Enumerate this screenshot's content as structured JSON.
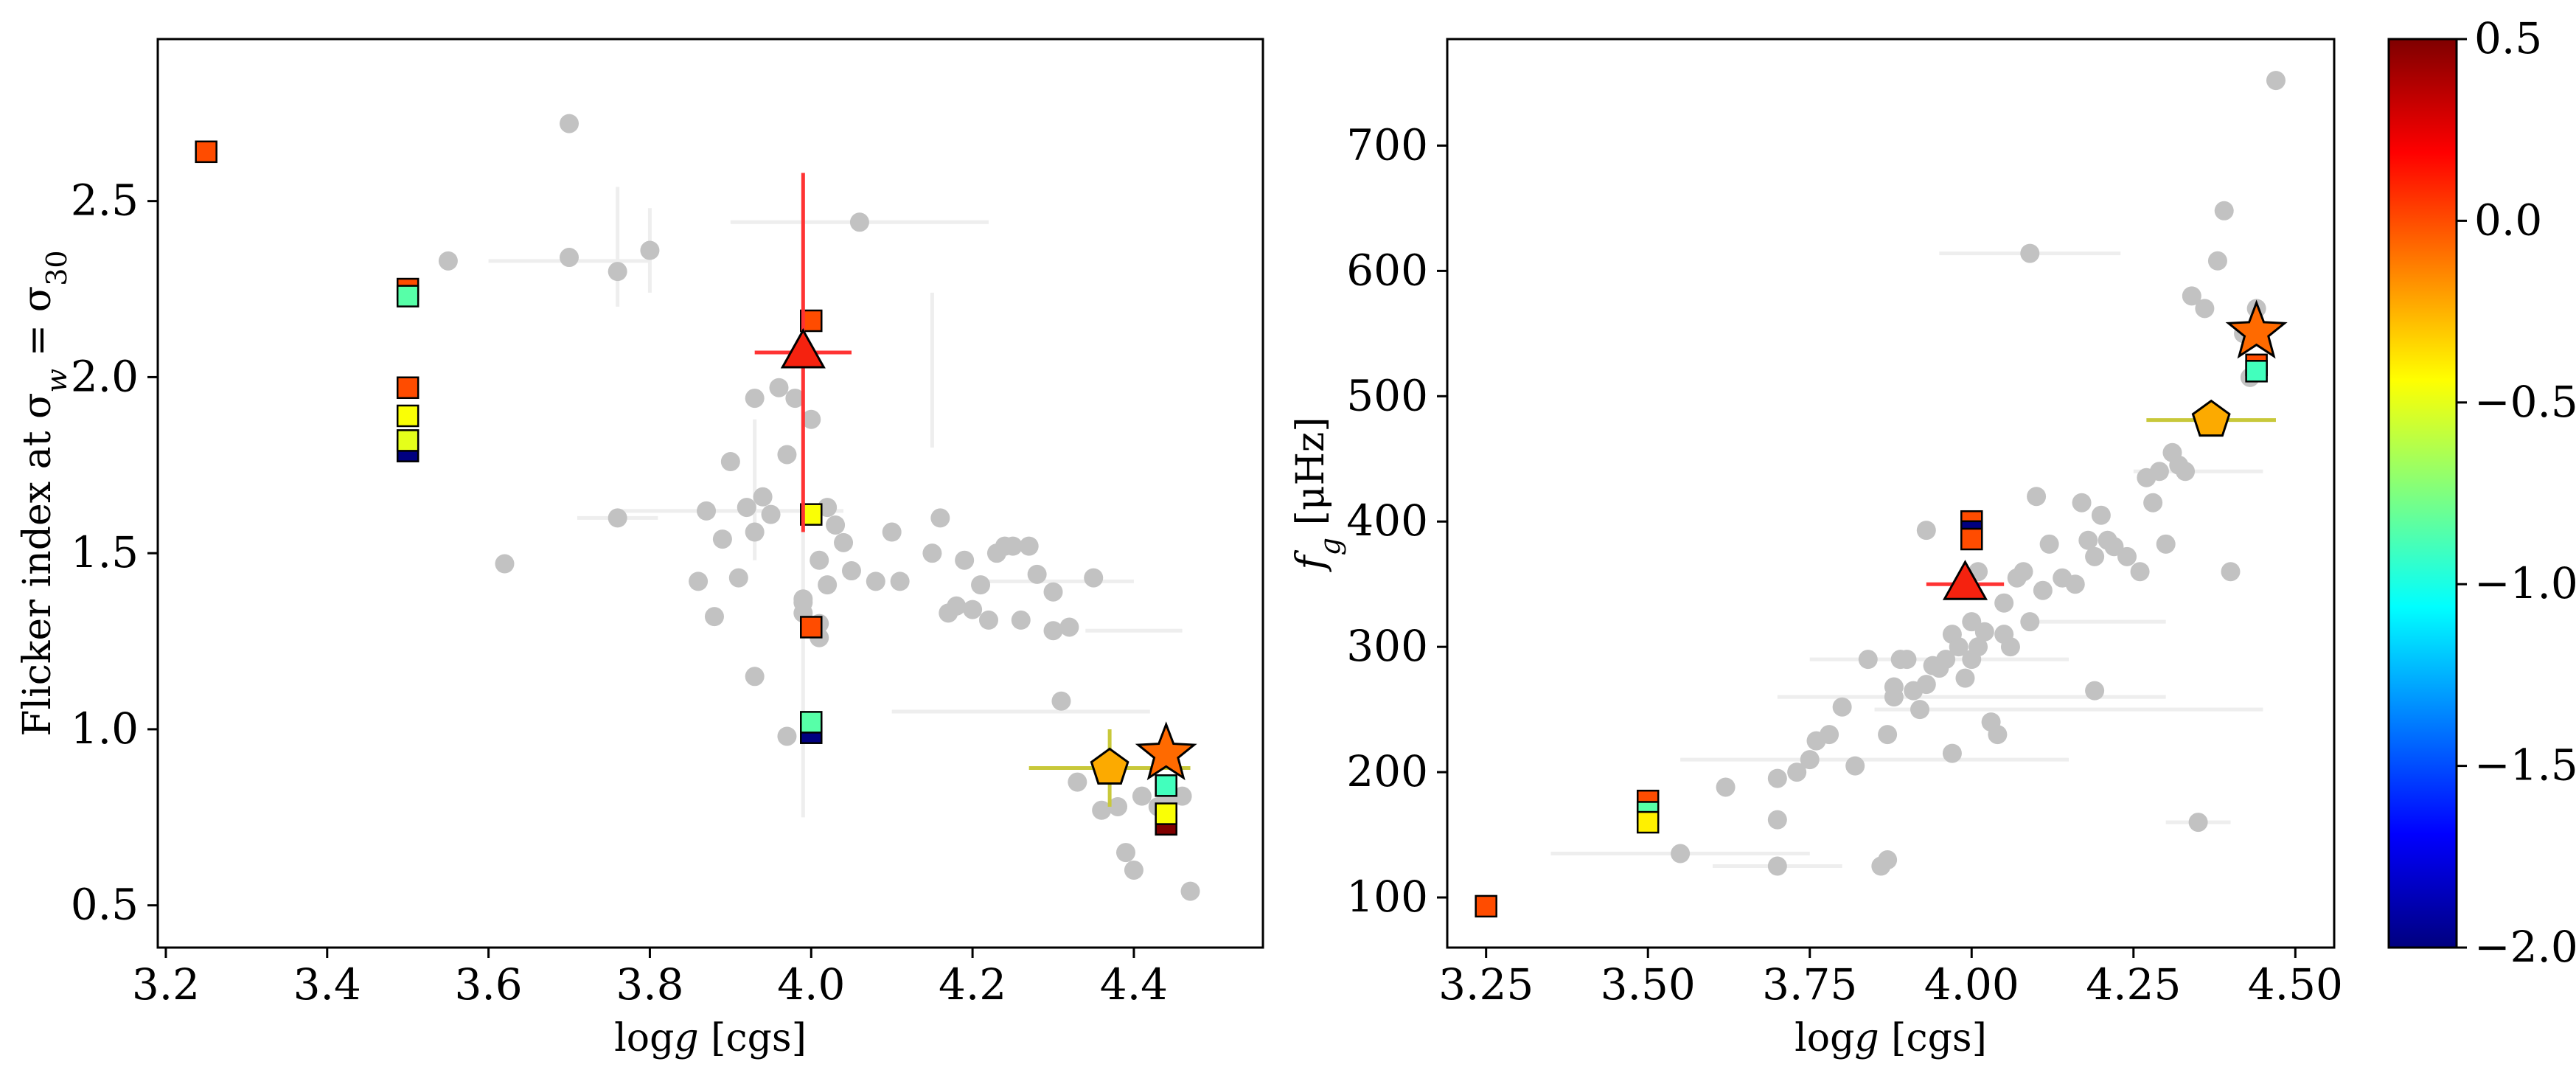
{
  "chart_data": [
    {
      "type": "scatter",
      "panel": "left",
      "xlabel_parts": [
        "log",
        "g",
        " [cgs]"
      ],
      "ylabel_parts": [
        "Flicker index at σ",
        "w",
        " = σ",
        "30"
      ],
      "xlim": [
        3.19,
        4.56
      ],
      "ylim": [
        0.38,
        2.96
      ],
      "xticks": [
        3.2,
        3.4,
        3.6,
        3.8,
        4.0,
        4.2,
        4.4
      ],
      "yticks": [
        0.5,
        1.0,
        1.5,
        2.0,
        2.5
      ],
      "xtick_labels": [
        "3.2",
        "3.4",
        "3.6",
        "3.8",
        "4.0",
        "4.2",
        "4.4"
      ],
      "ytick_labels": [
        "0.5",
        "1.0",
        "1.5",
        "2.0",
        "2.5"
      ],
      "grey_errorbars": [
        {
          "x": 3.7,
          "y": 2.33,
          "xerr": 0.1
        },
        {
          "x": 3.76,
          "y": 2.37,
          "yerr": 0.17
        },
        {
          "x": 3.8,
          "y": 2.36,
          "yerr": 0.12
        },
        {
          "x": 3.9,
          "y": 1.62,
          "xerr": 0.14
        },
        {
          "x": 4.06,
          "y": 2.44,
          "xerr": 0.16
        },
        {
          "x": 4.15,
          "y": 2.02,
          "yerr": 0.22
        },
        {
          "x": 3.99,
          "y": 1.2,
          "yerr": 0.45
        },
        {
          "x": 3.76,
          "y": 1.6,
          "xerr": 0.05
        },
        {
          "x": 3.93,
          "y": 1.68,
          "yerr": 0.2
        },
        {
          "x": 4.3,
          "y": 1.42,
          "xerr": 0.1
        },
        {
          "x": 4.26,
          "y": 1.05,
          "xerr": 0.16
        },
        {
          "x": 4.4,
          "y": 1.28,
          "xerr": 0.06
        }
      ],
      "grey_points": {
        "x": [
          3.55,
          3.7,
          3.7,
          3.76,
          3.8,
          3.62,
          3.76,
          3.86,
          3.87,
          3.88,
          3.89,
          3.9,
          3.91,
          3.92,
          3.93,
          3.93,
          3.94,
          3.95,
          3.96,
          3.97,
          3.98,
          3.99,
          3.99,
          4.0,
          4.0,
          4.01,
          4.01,
          4.02,
          4.02,
          4.03,
          4.04,
          4.05,
          4.06,
          4.08,
          4.1,
          4.11,
          4.15,
          4.16,
          4.17,
          4.18,
          4.19,
          4.2,
          4.21,
          4.22,
          4.23,
          4.24,
          4.25,
          4.26,
          4.27,
          4.28,
          4.3,
          4.31,
          4.32,
          4.33,
          4.35,
          4.36,
          4.38,
          4.41,
          4.43,
          4.44,
          4.46,
          4.47,
          3.93,
          3.97,
          4.01,
          3.99,
          4.39,
          4.4,
          4.3
        ],
        "y": [
          2.33,
          2.72,
          2.34,
          2.3,
          2.36,
          1.47,
          1.6,
          1.42,
          1.62,
          1.32,
          1.54,
          1.76,
          1.43,
          1.63,
          1.94,
          1.56,
          1.66,
          1.61,
          1.97,
          1.78,
          1.94,
          1.37,
          1.33,
          1.61,
          1.88,
          1.26,
          1.48,
          1.63,
          1.41,
          1.58,
          1.53,
          1.45,
          2.44,
          1.42,
          1.56,
          1.42,
          1.5,
          1.6,
          1.33,
          1.35,
          1.48,
          1.34,
          1.41,
          1.31,
          1.5,
          1.52,
          1.52,
          1.31,
          1.52,
          1.44,
          1.39,
          1.08,
          1.29,
          0.85,
          1.43,
          0.77,
          0.78,
          0.81,
          0.78,
          0.8,
          0.81,
          0.54,
          1.15,
          0.98,
          1.3,
          1.36,
          0.65,
          0.6,
          1.28
        ]
      },
      "squares": [
        {
          "x": 3.25,
          "y": 2.64,
          "value": 0.0
        },
        {
          "x": 3.5,
          "y": 2.25,
          "value": 0.0
        },
        {
          "x": 3.5,
          "y": 2.23,
          "value": -0.85
        },
        {
          "x": 3.5,
          "y": 1.97,
          "value": 0.0
        },
        {
          "x": 3.5,
          "y": 1.89,
          "value": -0.45
        },
        {
          "x": 3.5,
          "y": 1.79,
          "value": -2.0
        },
        {
          "x": 3.5,
          "y": 1.82,
          "value": -0.5
        },
        {
          "x": 4.0,
          "y": 2.16,
          "value": 0.0
        },
        {
          "x": 4.0,
          "y": 1.61,
          "value": -0.45
        },
        {
          "x": 4.0,
          "y": 1.29,
          "value": 0.0
        },
        {
          "x": 4.0,
          "y": 0.99,
          "value": -2.0
        },
        {
          "x": 4.0,
          "y": 1.02,
          "value": -0.85
        },
        {
          "x": 4.44,
          "y": 0.73,
          "value": 0.5
        },
        {
          "x": 4.44,
          "y": 0.76,
          "value": -0.45
        },
        {
          "x": 4.44,
          "y": 0.84,
          "value": -0.9
        }
      ],
      "triangle": {
        "x": 3.99,
        "y": 2.07,
        "xerr": 0.06,
        "yerr_low": 0.51,
        "yerr_high": 0.51,
        "errcolor": "#ff3333",
        "color": "#f5220f"
      },
      "pentagon": {
        "x": 4.37,
        "y": 0.89,
        "xerr": 0.1,
        "yerr": 0.11,
        "errcolor": "#c8c83a",
        "color": "#fcaa00"
      },
      "star": {
        "x": 4.44,
        "y": 0.93,
        "color": "#ff6a00"
      }
    },
    {
      "type": "scatter",
      "panel": "right",
      "xlabel_parts": [
        "log",
        "g",
        " [cgs]"
      ],
      "ylabel_parts": [
        "f",
        "g",
        " [μHz]"
      ],
      "xlim": [
        3.19,
        4.56
      ],
      "ylim": [
        60,
        785
      ],
      "xticks": [
        3.25,
        3.5,
        3.75,
        4.0,
        4.25,
        4.5
      ],
      "yticks": [
        100,
        200,
        300,
        400,
        500,
        600,
        700
      ],
      "xtick_labels": [
        "3.25",
        "3.50",
        "3.75",
        "4.00",
        "4.25",
        "4.50"
      ],
      "ytick_labels": [
        "100",
        "200",
        "300",
        "400",
        "500",
        "600",
        "700"
      ],
      "grey_errorbars": [
        {
          "x": 4.09,
          "y": 614,
          "xerr": 0.14
        },
        {
          "x": 3.55,
          "y": 135,
          "xerr": 0.2
        },
        {
          "x": 3.7,
          "y": 125,
          "xerr": 0.1
        },
        {
          "x": 3.95,
          "y": 290,
          "xerr": 0.2
        },
        {
          "x": 4.0,
          "y": 260,
          "xerr": 0.3
        },
        {
          "x": 4.15,
          "y": 250,
          "xerr": 0.3
        },
        {
          "x": 3.85,
          "y": 210,
          "xerr": 0.3
        },
        {
          "x": 4.35,
          "y": 160,
          "xerr": 0.05
        },
        {
          "x": 4.2,
          "y": 320,
          "xerr": 0.1
        },
        {
          "x": 4.35,
          "y": 440,
          "xerr": 0.1
        }
      ],
      "grey_points": {
        "x": [
          3.55,
          3.62,
          3.7,
          3.7,
          3.7,
          3.73,
          3.75,
          3.76,
          3.78,
          3.8,
          3.82,
          3.84,
          3.86,
          3.87,
          3.87,
          3.88,
          3.88,
          3.89,
          3.9,
          3.91,
          3.92,
          3.93,
          3.94,
          3.95,
          3.96,
          3.97,
          3.97,
          3.98,
          3.99,
          4.0,
          4.0,
          4.01,
          4.02,
          4.03,
          4.04,
          4.05,
          4.06,
          4.07,
          4.08,
          4.09,
          4.1,
          4.11,
          4.12,
          4.14,
          4.16,
          4.17,
          4.18,
          4.19,
          4.2,
          4.21,
          4.22,
          4.24,
          4.26,
          4.28,
          4.29,
          4.3,
          4.31,
          4.32,
          4.33,
          4.34,
          4.36,
          4.38,
          4.39,
          4.4,
          4.42,
          4.43,
          4.44,
          4.47,
          4.35,
          4.19,
          4.09,
          4.05,
          4.01,
          3.93,
          4.27
        ],
        "y": [
          135,
          188,
          195,
          162,
          125,
          200,
          210,
          225,
          230,
          252,
          205,
          290,
          125,
          130,
          230,
          260,
          268,
          290,
          290,
          265,
          250,
          270,
          285,
          283,
          290,
          215,
          310,
          300,
          275,
          290,
          320,
          300,
          312,
          240,
          230,
          335,
          300,
          355,
          360,
          320,
          420,
          345,
          382,
          355,
          350,
          415,
          385,
          372,
          405,
          385,
          380,
          372,
          360,
          415,
          440,
          382,
          455,
          445,
          440,
          580,
          570,
          608,
          648,
          360,
          550,
          515,
          570,
          752,
          160,
          265,
          614,
          310,
          360,
          393,
          435
        ]
      },
      "squares": [
        {
          "x": 3.25,
          "y": 93,
          "value": 0.0
        },
        {
          "x": 3.5,
          "y": 177,
          "value": 0.0
        },
        {
          "x": 3.5,
          "y": 168,
          "value": -0.85
        },
        {
          "x": 3.5,
          "y": 160,
          "value": -0.4
        },
        {
          "x": 4.0,
          "y": 400,
          "value": 0.0
        },
        {
          "x": 4.0,
          "y": 392,
          "value": -2.0
        },
        {
          "x": 4.0,
          "y": 386,
          "value": 0.0
        },
        {
          "x": 4.44,
          "y": 525,
          "value": 0.0
        },
        {
          "x": 4.44,
          "y": 520,
          "value": -0.9
        }
      ],
      "triangle": {
        "x": 3.99,
        "y": 350,
        "xerr": 0.06,
        "errcolor": "#ff3333",
        "color": "#f5220f"
      },
      "pentagon": {
        "x": 4.37,
        "y": 481,
        "xerr": 0.1,
        "errcolor": "#c8c83a",
        "color": "#fcaa00"
      },
      "star": {
        "x": 4.44,
        "y": 551,
        "color": "#ff6a00"
      }
    }
  ],
  "colorbar": {
    "vmin": -2.0,
    "vmax": 0.5,
    "ticks": [
      0.5,
      0.0,
      -0.5,
      -1.0,
      -1.5,
      -2.0
    ],
    "tick_labels": [
      "0.5",
      "0.0",
      "−0.5",
      "−1.0",
      "−1.5",
      "−2.0"
    ],
    "colormap": "jet",
    "colors": [
      "#00007f",
      "#0000ff",
      "#007fff",
      "#00ffff",
      "#7fff7f",
      "#ffff00",
      "#ff7f00",
      "#ff0000",
      "#7f0000"
    ]
  },
  "colors": {
    "grey_point": "#c2c2c2",
    "grey_errorbar": "#eeeeee",
    "marker_edge": "#000000"
  }
}
